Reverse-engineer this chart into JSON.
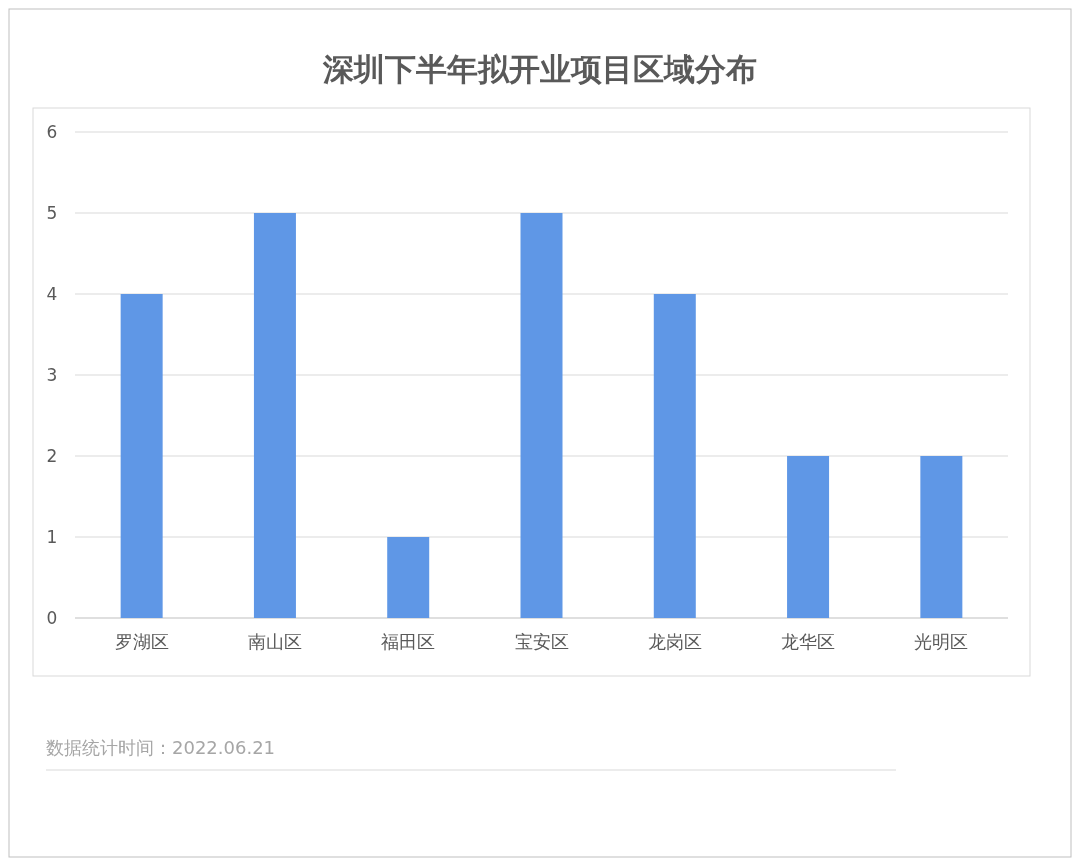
{
  "chart_data": {
    "type": "bar",
    "title": "深圳下半年拟开业项目区域分布",
    "categories": [
      "罗湖区",
      "南山区",
      "福田区",
      "宝安区",
      "龙岗区",
      "龙华区",
      "光明区"
    ],
    "values": [
      4,
      5,
      1,
      5,
      4,
      2,
      2
    ],
    "color": "#5f97e6",
    "ylim": [
      0,
      6
    ],
    "yticks": [
      0,
      1,
      2,
      3,
      4,
      5,
      6
    ],
    "grid": "y",
    "annotations": [
      "数据统计时间：2022.06.21"
    ]
  }
}
